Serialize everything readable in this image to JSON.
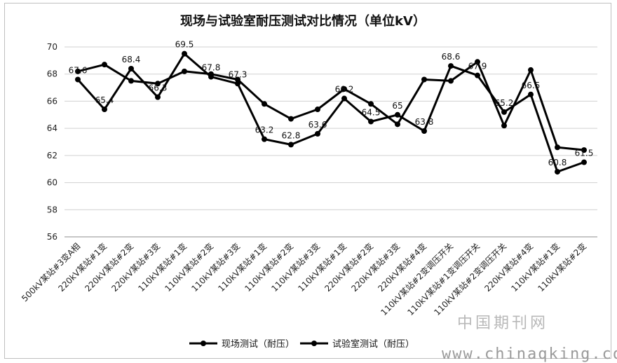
{
  "chart_data": {
    "type": "line",
    "title": "现场与试验室耐压测试对比情况（单位kV）",
    "categories": [
      "500kV某站#3变A相",
      "220kV某站#1变",
      "220kV某站#2变",
      "220kV某站#3变",
      "110kV某站#1变",
      "110kV某站#2变",
      "110kV某站#3变",
      "110kV某站#1变",
      "110kV某站#2变",
      "110kV某站#3变",
      "110kV某站#1变",
      "220kV某站#2变",
      "220kV某站#3变",
      "220kV某站#4变",
      "110kV某站#2变调压开关",
      "110kV某站#1变调压开关",
      "110kV某站#2变调压开关",
      "220kV某站#4变",
      "110kV某站#1变",
      "110kV某站#2变"
    ],
    "ylim": [
      56,
      70
    ],
    "yticks": [
      56,
      58,
      60,
      62,
      64,
      66,
      68,
      70
    ],
    "grid": true,
    "legend_position": "bottom",
    "series": [
      {
        "name": "现场测试（耐压）",
        "values": [
          67.6,
          65.4,
          68.4,
          66.3,
          69.5,
          67.8,
          67.3,
          63.2,
          62.8,
          63.6,
          66.2,
          64.5,
          65.0,
          63.8,
          68.6,
          67.9,
          65.2,
          66.5,
          60.8,
          61.5
        ],
        "labels": [
          "67.6",
          "65.4",
          "68.4",
          "66.3",
          "69.5",
          "67.8",
          "67.3",
          "63.2",
          "62.8",
          "63.6",
          "66.2",
          "64.5",
          "65",
          "63.8",
          "68.6",
          "67.9",
          "65.2",
          "66.5",
          "60.8",
          "61.5"
        ]
      },
      {
        "name": "试验室测试（耐压）",
        "values": [
          68.2,
          68.7,
          67.5,
          67.3,
          68.2,
          68.0,
          67.6,
          65.8,
          64.7,
          65.4,
          66.9,
          65.8,
          64.3,
          67.6,
          67.5,
          68.9,
          64.2,
          68.3,
          62.6,
          62.4
        ]
      }
    ],
    "colors": {
      "line": "#000000",
      "grid": "#d0d0d0",
      "axis": "#8c8c8c"
    }
  },
  "watermark": {
    "line1": "中国期刊网",
    "line2": "www.chinaqking.com"
  }
}
